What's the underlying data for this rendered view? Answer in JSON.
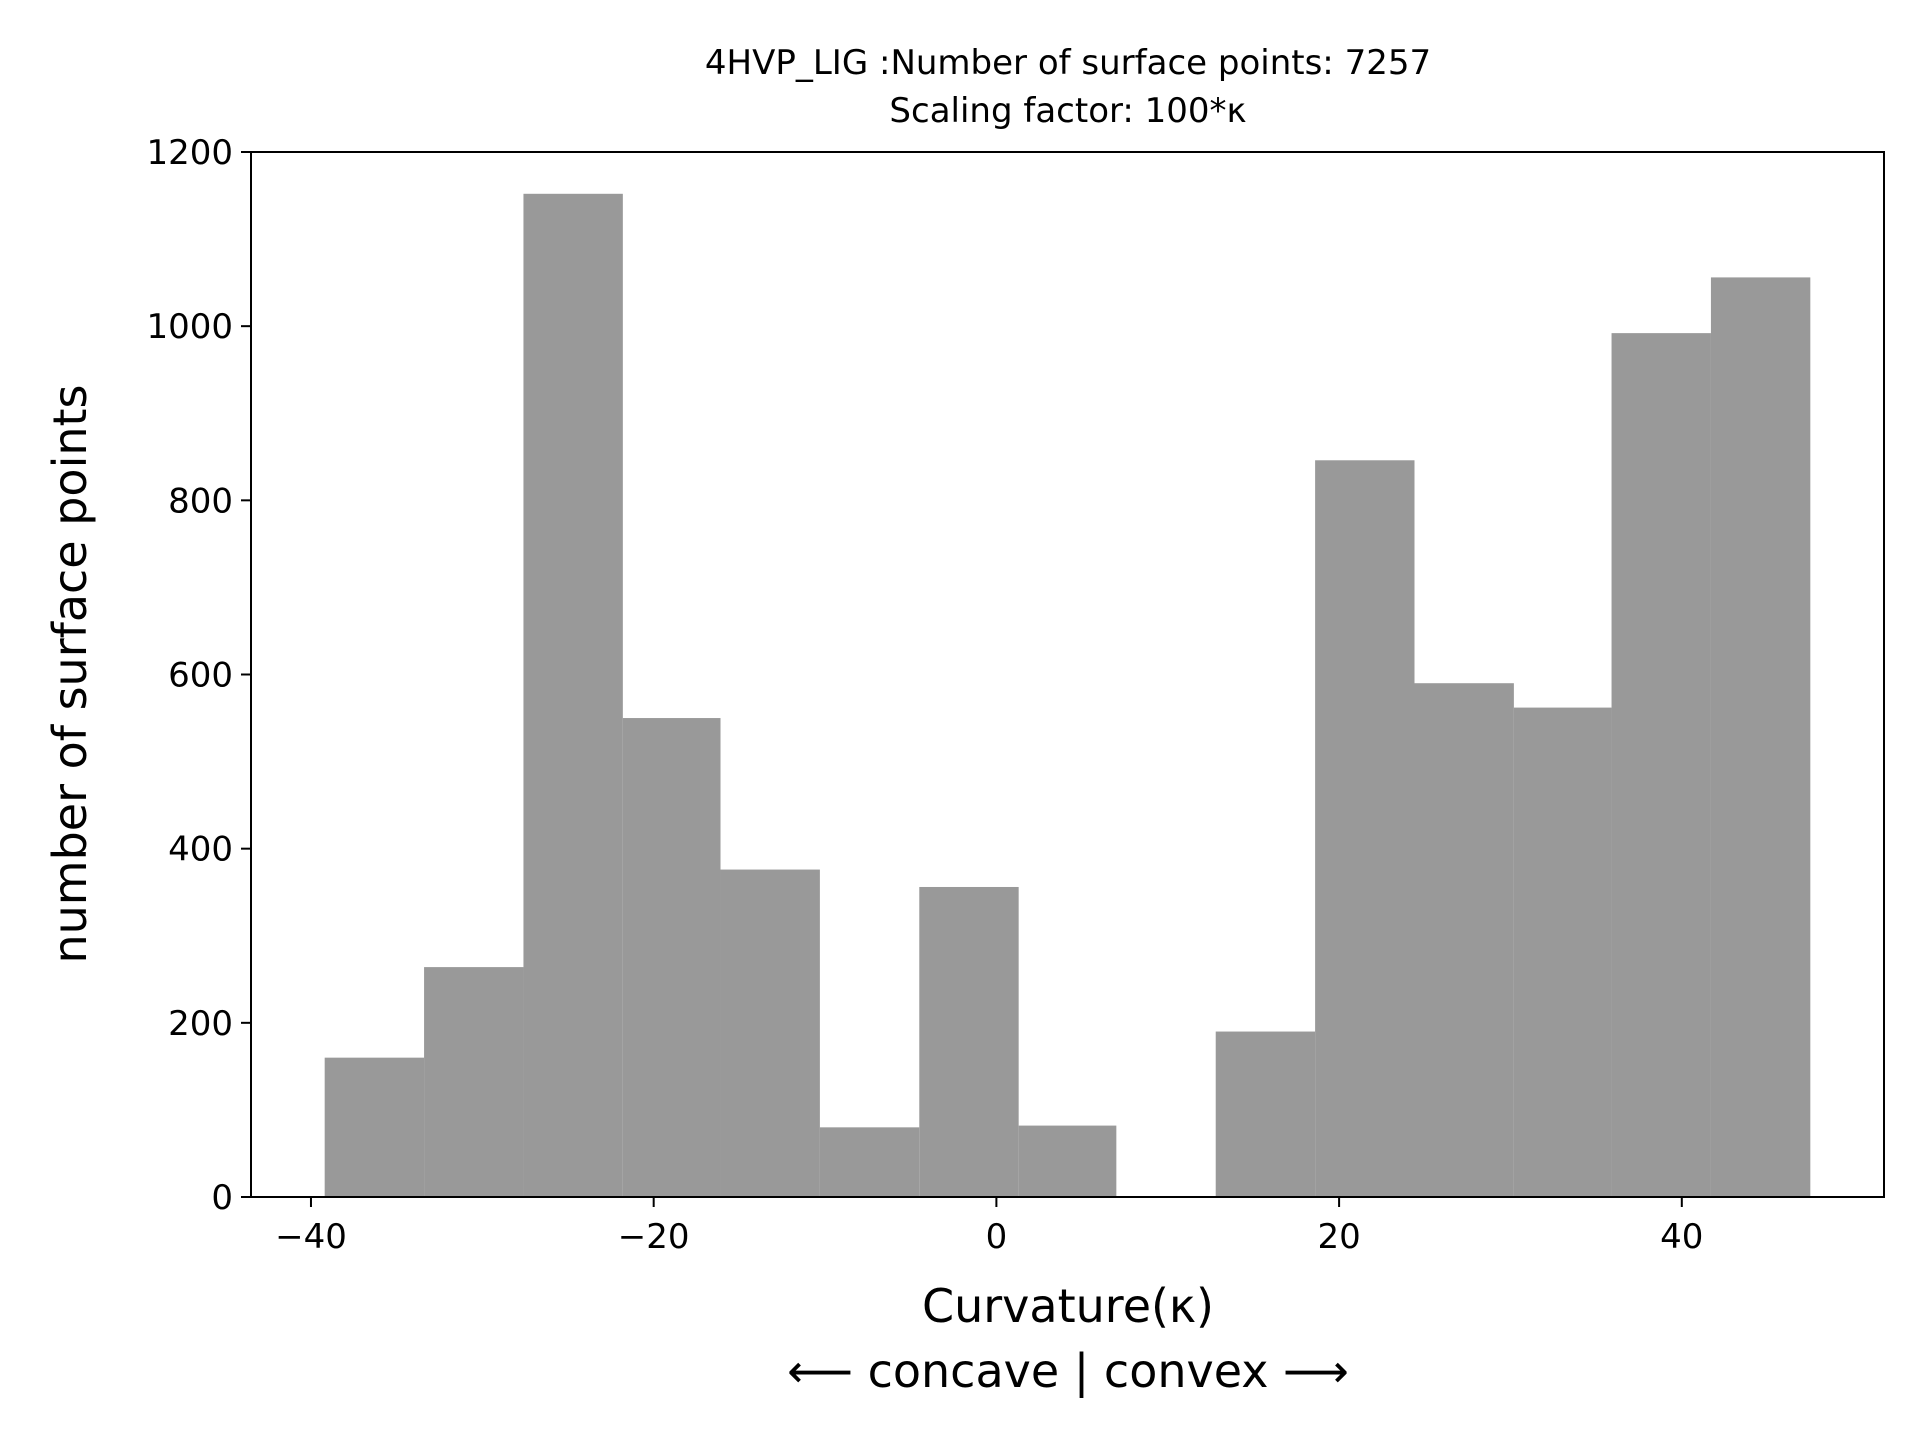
{
  "chart_data": {
    "type": "bar",
    "title": "4HVP_LIG :Number of surface points: 7257",
    "subtitle": "Scaling factor: 100*κ",
    "xlabel": "Curvature(κ)",
    "xlabel_sub": "⟵ concave | convex ⟶",
    "ylabel": "number of surface points",
    "bar_color": "#999999",
    "xlim": [
      -43.5,
      51.8
    ],
    "ylim": [
      0,
      1200
    ],
    "x_ticks": [
      {
        "value": -40,
        "label": "−40"
      },
      {
        "value": -20,
        "label": "−20"
      },
      {
        "value": 0,
        "label": "0"
      },
      {
        "value": 20,
        "label": "20"
      },
      {
        "value": 40,
        "label": "40"
      }
    ],
    "y_ticks": [
      {
        "value": 0,
        "label": "0"
      },
      {
        "value": 200,
        "label": "200"
      },
      {
        "value": 400,
        "label": "400"
      },
      {
        "value": 600,
        "label": "600"
      },
      {
        "value": 800,
        "label": "800"
      },
      {
        "value": 1000,
        "label": "1000"
      },
      {
        "value": 1200,
        "label": "1200"
      }
    ],
    "bins": [
      {
        "x0": -39.2,
        "x1": -33.4,
        "count": 160
      },
      {
        "x0": -33.4,
        "x1": -27.6,
        "count": 264
      },
      {
        "x0": -27.6,
        "x1": -21.8,
        "count": 1152
      },
      {
        "x0": -21.8,
        "x1": -16.1,
        "count": 550
      },
      {
        "x0": -16.1,
        "x1": -10.3,
        "count": 376
      },
      {
        "x0": -10.3,
        "x1": -4.5,
        "count": 80
      },
      {
        "x0": -4.5,
        "x1": 1.3,
        "count": 356
      },
      {
        "x0": 1.3,
        "x1": 7.0,
        "count": 82
      },
      {
        "x0": 7.0,
        "x1": 12.8,
        "count": 0
      },
      {
        "x0": 12.8,
        "x1": 18.6,
        "count": 190
      },
      {
        "x0": 18.6,
        "x1": 24.4,
        "count": 846
      },
      {
        "x0": 24.4,
        "x1": 30.2,
        "count": 590
      },
      {
        "x0": 30.2,
        "x1": 35.9,
        "count": 562
      },
      {
        "x0": 35.9,
        "x1": 41.7,
        "count": 992
      },
      {
        "x0": 41.7,
        "x1": 47.5,
        "count": 1056
      }
    ]
  }
}
